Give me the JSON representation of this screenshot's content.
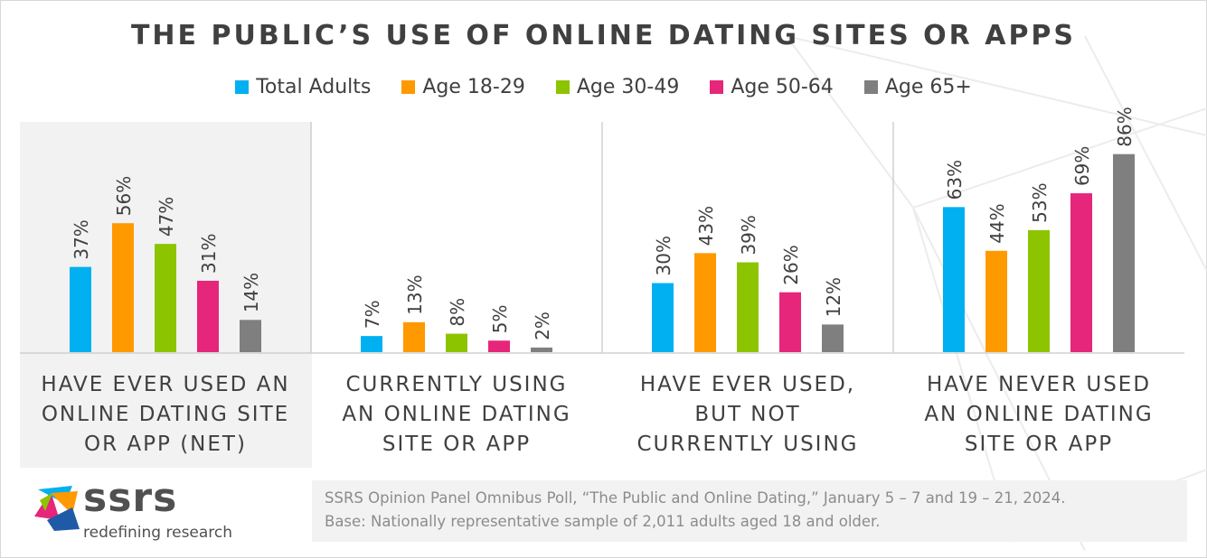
{
  "chart_data": {
    "type": "bar",
    "title": "THE PUBLIC’S USE OF ONLINE DATING SITES OR APPS",
    "categories": [
      [
        "HAVE EVER USED AN",
        "ONLINE DATING SITE",
        "OR APP (NET)"
      ],
      [
        "CURRENTLY USING",
        "AN ONLINE DATING",
        "SITE OR APP"
      ],
      [
        "HAVE EVER USED,",
        "BUT NOT",
        "CURRENTLY USING"
      ],
      [
        "HAVE NEVER USED",
        "AN ONLINE DATING",
        "SITE OR APP"
      ]
    ],
    "series": [
      {
        "name": "Total Adults",
        "color": "#00b0f0",
        "values": [
          37,
          7,
          30,
          63
        ]
      },
      {
        "name": "Age 18-29",
        "color": "#ff9900",
        "values": [
          56,
          13,
          43,
          44
        ]
      },
      {
        "name": "Age 30-49",
        "color": "#8dc400",
        "values": [
          47,
          8,
          39,
          53
        ]
      },
      {
        "name": "Age 50-64",
        "color": "#e6267a",
        "values": [
          31,
          5,
          26,
          69
        ]
      },
      {
        "name": "Age 65+",
        "color": "#7f7f7f",
        "values": [
          14,
          2,
          12,
          86
        ]
      }
    ],
    "value_suffix": "%",
    "xlabel": "",
    "ylabel": "",
    "ylim": [
      0,
      100
    ],
    "legend_position": "top",
    "grid": false
  },
  "footnote": {
    "line1": "SSRS Opinion Panel Omnibus Poll, “The Public and Online Dating,” January 5 – 7 and 19 – 21, 2024.",
    "line2": "Base: Nationally representative sample of 2,011 adults aged 18 and older."
  },
  "logo": {
    "wordmark": "ssrs",
    "tagline": "redefining research"
  }
}
